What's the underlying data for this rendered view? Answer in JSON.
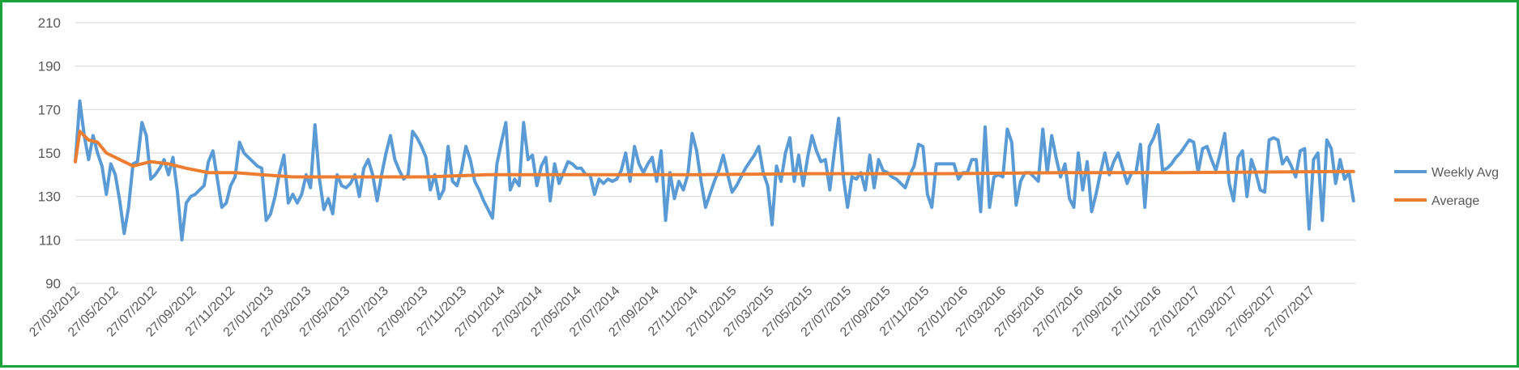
{
  "chart_data": {
    "type": "line",
    "title": "",
    "xlabel": "",
    "ylabel": "",
    "ylim": [
      90,
      210
    ],
    "y_ticks": [
      90,
      110,
      130,
      150,
      170,
      190,
      210
    ],
    "x_range": [
      "2012-03-27",
      "2017-10-06"
    ],
    "x_tick_labels": [
      "27/03/2012",
      "27/05/2012",
      "27/07/2012",
      "27/09/2012",
      "27/11/2012",
      "27/01/2013",
      "27/03/2013",
      "27/05/2013",
      "27/07/2013",
      "27/09/2013",
      "27/11/2013",
      "27/01/2014",
      "27/03/2014",
      "27/05/2014",
      "27/07/2014",
      "27/09/2014",
      "27/11/2014",
      "27/01/2015",
      "27/03/2015",
      "27/05/2015",
      "27/07/2015",
      "27/09/2015",
      "27/11/2015",
      "27/01/2016",
      "27/03/2016",
      "27/05/2016",
      "27/07/2016",
      "27/09/2016",
      "27/11/2016",
      "27/01/2017",
      "27/03/2017",
      "27/05/2017",
      "27/07/2017"
    ],
    "grid": true,
    "legend_position": "right",
    "series": [
      {
        "name": "Weekly Avg",
        "color": "#5b9bd5",
        "x": [
          "2012-03-27",
          "2012-04-03",
          "2012-04-10",
          "2012-04-17",
          "2012-04-24",
          "2012-05-01",
          "2012-05-08",
          "2012-05-15",
          "2012-05-22",
          "2012-05-29",
          "2012-06-05",
          "2012-06-12",
          "2012-06-19",
          "2012-06-26",
          "2012-07-03",
          "2012-07-10",
          "2012-07-17",
          "2012-07-24",
          "2012-07-31",
          "2012-08-07",
          "2012-08-14",
          "2012-08-21",
          "2012-08-28",
          "2012-09-04",
          "2012-09-11",
          "2012-09-18",
          "2012-09-25",
          "2012-10-02",
          "2012-10-09",
          "2012-10-16",
          "2012-10-23",
          "2012-10-30",
          "2012-11-06",
          "2012-11-13",
          "2012-11-20",
          "2012-11-27",
          "2012-12-04",
          "2012-12-11",
          "2012-12-18",
          "2012-12-25",
          "2013-01-01",
          "2013-01-08",
          "2013-01-15",
          "2013-01-22",
          "2013-01-29",
          "2013-02-05",
          "2013-02-12",
          "2013-02-19",
          "2013-02-26",
          "2013-03-05",
          "2013-03-12",
          "2013-03-19",
          "2013-03-26",
          "2013-04-02",
          "2013-04-09",
          "2013-04-16",
          "2013-04-23",
          "2013-04-30",
          "2013-05-07",
          "2013-05-14",
          "2013-05-21",
          "2013-05-28",
          "2013-06-04",
          "2013-06-11",
          "2013-06-18",
          "2013-06-25",
          "2013-07-02",
          "2013-07-09",
          "2013-07-16",
          "2013-07-23",
          "2013-07-30",
          "2013-08-06",
          "2013-08-13",
          "2013-08-20",
          "2013-08-27",
          "2013-09-03",
          "2013-09-10",
          "2013-09-17",
          "2013-09-24",
          "2013-10-01",
          "2013-10-08",
          "2013-10-15",
          "2013-10-22",
          "2013-10-29",
          "2013-11-05",
          "2013-11-12",
          "2013-11-19",
          "2013-11-26",
          "2013-12-03",
          "2013-12-10",
          "2013-12-17",
          "2013-12-24",
          "2013-12-31",
          "2014-01-07",
          "2014-01-14",
          "2014-01-21",
          "2014-01-28",
          "2014-02-04",
          "2014-02-11",
          "2014-02-18",
          "2014-02-25",
          "2014-03-04",
          "2014-03-11",
          "2014-03-18",
          "2014-03-25",
          "2014-04-01",
          "2014-04-08",
          "2014-04-15",
          "2014-04-22",
          "2014-04-29",
          "2014-05-06",
          "2014-05-13",
          "2014-05-20",
          "2014-05-27",
          "2014-06-03",
          "2014-06-10",
          "2014-06-17",
          "2014-06-24",
          "2014-07-01",
          "2014-07-08",
          "2014-07-15",
          "2014-07-22",
          "2014-07-29",
          "2014-08-05",
          "2014-08-12",
          "2014-08-19",
          "2014-08-26",
          "2014-09-02",
          "2014-09-09",
          "2014-09-16",
          "2014-09-23",
          "2014-09-30",
          "2014-10-07",
          "2014-10-14",
          "2014-10-21",
          "2014-10-28",
          "2014-11-04",
          "2014-11-11",
          "2014-11-18",
          "2014-11-25",
          "2014-12-02",
          "2014-12-09",
          "2014-12-16",
          "2014-12-23",
          "2014-12-30",
          "2015-01-06",
          "2015-01-13",
          "2015-01-20",
          "2015-01-27",
          "2015-02-03",
          "2015-02-10",
          "2015-02-17",
          "2015-02-24",
          "2015-03-03",
          "2015-03-10",
          "2015-03-17",
          "2015-03-24",
          "2015-03-31",
          "2015-04-07",
          "2015-04-14",
          "2015-04-21",
          "2015-04-28",
          "2015-05-05",
          "2015-05-12",
          "2015-05-19",
          "2015-05-26",
          "2015-06-02",
          "2015-06-09",
          "2015-06-16",
          "2015-06-23",
          "2015-06-30",
          "2015-07-07",
          "2015-07-14",
          "2015-07-21",
          "2015-07-28",
          "2015-08-04",
          "2015-08-11",
          "2015-08-18",
          "2015-08-25",
          "2015-09-01",
          "2015-09-08",
          "2015-09-15",
          "2015-09-22",
          "2015-09-29",
          "2015-10-06",
          "2015-10-13",
          "2015-10-20",
          "2015-10-27",
          "2015-11-03",
          "2015-11-10",
          "2015-11-17",
          "2015-11-24",
          "2015-12-01",
          "2015-12-08",
          "2015-12-15",
          "2015-12-22",
          "2015-12-29",
          "2016-01-05",
          "2016-01-12",
          "2016-01-19",
          "2016-01-26",
          "2016-02-02",
          "2016-02-09",
          "2016-02-16",
          "2016-02-23",
          "2016-03-01",
          "2016-03-08",
          "2016-03-15",
          "2016-03-22",
          "2016-03-29",
          "2016-04-05",
          "2016-04-12",
          "2016-04-19",
          "2016-04-26",
          "2016-05-03",
          "2016-05-10",
          "2016-05-17",
          "2016-05-24",
          "2016-05-31",
          "2016-06-07",
          "2016-06-14",
          "2016-06-21",
          "2016-06-28",
          "2016-07-05",
          "2016-07-12",
          "2016-07-19",
          "2016-07-26",
          "2016-08-02",
          "2016-08-09",
          "2016-08-16",
          "2016-08-23",
          "2016-08-30",
          "2016-09-06",
          "2016-09-13",
          "2016-09-20",
          "2016-09-27",
          "2016-10-04",
          "2016-10-11",
          "2016-10-18",
          "2016-10-25",
          "2016-11-01",
          "2016-11-08",
          "2016-11-15",
          "2016-11-22",
          "2016-11-29",
          "2016-12-06",
          "2016-12-13",
          "2016-12-20",
          "2016-12-27",
          "2017-01-03",
          "2017-01-10",
          "2017-01-17",
          "2017-01-24",
          "2017-01-31",
          "2017-02-07",
          "2017-02-14",
          "2017-02-21",
          "2017-02-28",
          "2017-03-07",
          "2017-03-14",
          "2017-03-21",
          "2017-03-28",
          "2017-04-04",
          "2017-04-11",
          "2017-04-18",
          "2017-04-25",
          "2017-05-02",
          "2017-05-09",
          "2017-05-16",
          "2017-05-23",
          "2017-05-30",
          "2017-06-06",
          "2017-06-13",
          "2017-06-20",
          "2017-06-27",
          "2017-07-04",
          "2017-07-11",
          "2017-07-18",
          "2017-07-25",
          "2017-08-01",
          "2017-08-08",
          "2017-08-15",
          "2017-08-22",
          "2017-08-29",
          "2017-09-05",
          "2017-09-12",
          "2017-09-19",
          "2017-09-26",
          "2017-10-03"
        ],
        "values": [
          146,
          174,
          158,
          147,
          158,
          150,
          144,
          131,
          145,
          140,
          128,
          113,
          125,
          145,
          146,
          164,
          158,
          138,
          140,
          143,
          147,
          140,
          148,
          132,
          110,
          127,
          130,
          131,
          133,
          135,
          146,
          151,
          138,
          125,
          127,
          135,
          139,
          155,
          150,
          148,
          146,
          144,
          143,
          119,
          122,
          130,
          141,
          149,
          127,
          131,
          127,
          131,
          140,
          134,
          163,
          138,
          124,
          129,
          122,
          140,
          135,
          134,
          136,
          140,
          130,
          143,
          147,
          140,
          128,
          140,
          150,
          158,
          147,
          142,
          138,
          140,
          160,
          157,
          153,
          148,
          133,
          140,
          129,
          133,
          153,
          137,
          135,
          142,
          153,
          147,
          137,
          133,
          128,
          124,
          120,
          145,
          155,
          164,
          133,
          138,
          135,
          164,
          147,
          149,
          135,
          144,
          148,
          128,
          145,
          136,
          141,
          146,
          145,
          143,
          143,
          140,
          140,
          131,
          138,
          136,
          138,
          137,
          138,
          142,
          150,
          137,
          153,
          145,
          141,
          145,
          148,
          137,
          151,
          119,
          141,
          129,
          137,
          133,
          140,
          159,
          151,
          137,
          125,
          131,
          137,
          142,
          149,
          140,
          132,
          135,
          139,
          143,
          146,
          149,
          153,
          141,
          135,
          117,
          144,
          137,
          150,
          157,
          137,
          149,
          135,
          148,
          158,
          151,
          146,
          147,
          133,
          150,
          166,
          140,
          125,
          139,
          138,
          141,
          133,
          149,
          134,
          147,
          142,
          141,
          139,
          138,
          136,
          134,
          140,
          144,
          154,
          153,
          131,
          125,
          145,
          145,
          145,
          145,
          145,
          138,
          141,
          141,
          147,
          147,
          123,
          162,
          125,
          139,
          140,
          139,
          161,
          155,
          126,
          137,
          141,
          141,
          139,
          137,
          161,
          141,
          158,
          148,
          139,
          145,
          129,
          125,
          150,
          133,
          146,
          123,
          131,
          141,
          150,
          140,
          146,
          150,
          143,
          136,
          141,
          141,
          154,
          125,
          153,
          157,
          163,
          142,
          143,
          145,
          148,
          150,
          153,
          156,
          155,
          141,
          152,
          153,
          147,
          142,
          150,
          159,
          136,
          128,
          148,
          151,
          130,
          147,
          141,
          133,
          132,
          156,
          157,
          156,
          145,
          148,
          144,
          139,
          151,
          152,
          115,
          147,
          150,
          119,
          156,
          152,
          136,
          147,
          138,
          141,
          128
        ]
      },
      {
        "name": "Average",
        "color": "#ed7d31",
        "x": [
          "2012-03-27",
          "2012-04-03",
          "2012-04-17",
          "2012-05-01",
          "2012-05-15",
          "2012-06-05",
          "2012-06-26",
          "2012-07-24",
          "2012-08-21",
          "2012-09-18",
          "2012-10-23",
          "2012-12-04",
          "2013-01-15",
          "2013-03-05",
          "2013-05-07",
          "2013-07-16",
          "2013-10-01",
          "2014-01-07",
          "2014-06-03",
          "2014-12-02",
          "2015-06-02",
          "2016-01-05",
          "2016-07-05",
          "2017-01-03",
          "2017-10-03"
        ],
        "values": [
          146,
          160,
          156,
          155,
          150,
          147,
          144,
          146,
          145,
          143,
          141,
          141,
          140,
          139,
          139,
          139,
          139,
          140,
          140,
          140,
          140.5,
          140.5,
          141,
          141,
          141.5
        ]
      }
    ]
  }
}
